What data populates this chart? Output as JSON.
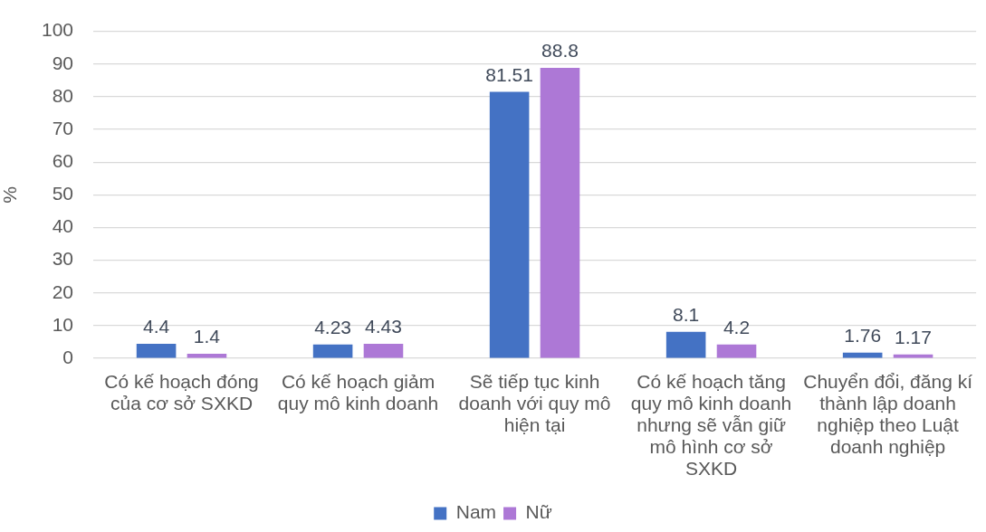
{
  "chart_data": {
    "type": "bar",
    "ylabel": "%",
    "categories": [
      "Có kế hoạch đóng của cơ sở SXKD",
      "Có kế hoạch giảm quy mô kinh doanh",
      "Sẽ tiếp tục kinh doanh với quy mô hiện tại",
      "Có kế hoạch tăng quy mô kinh doanh nhưng sẽ vẫn giữ mô hình cơ sở SXKD",
      "Chuyển đổi, đăng kí thành lập doanh nghiệp theo Luật doanh nghiệp"
    ],
    "series": [
      {
        "name": "Nam",
        "color": "#4472c4",
        "values": [
          4.4,
          4.23,
          81.51,
          8.1,
          1.76
        ]
      },
      {
        "name": "Nữ",
        "color": "#ad78d6",
        "values": [
          1.4,
          4.43,
          88.8,
          4.2,
          1.17
        ]
      }
    ],
    "ylim": [
      0,
      100
    ],
    "yticks": [
      0,
      10,
      20,
      30,
      40,
      50,
      60,
      70,
      80,
      90,
      100
    ],
    "grid": "y",
    "legend": "bottom",
    "data_labels": true
  }
}
